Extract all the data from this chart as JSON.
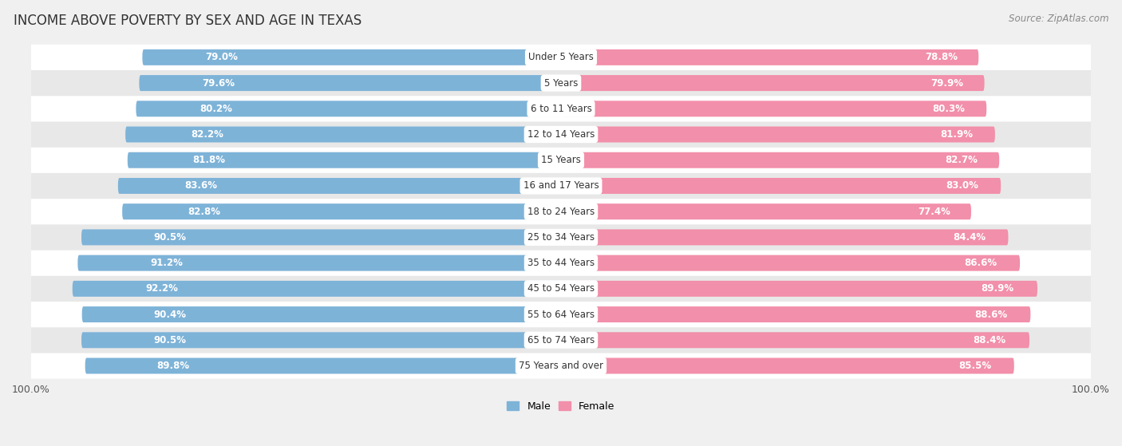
{
  "title": "INCOME ABOVE POVERTY BY SEX AND AGE IN TEXAS",
  "source": "Source: ZipAtlas.com",
  "categories": [
    "Under 5 Years",
    "5 Years",
    "6 to 11 Years",
    "12 to 14 Years",
    "15 Years",
    "16 and 17 Years",
    "18 to 24 Years",
    "25 to 34 Years",
    "35 to 44 Years",
    "45 to 54 Years",
    "55 to 64 Years",
    "65 to 74 Years",
    "75 Years and over"
  ],
  "male_values": [
    79.0,
    79.6,
    80.2,
    82.2,
    81.8,
    83.6,
    82.8,
    90.5,
    91.2,
    92.2,
    90.4,
    90.5,
    89.8
  ],
  "female_values": [
    78.8,
    79.9,
    80.3,
    81.9,
    82.7,
    83.0,
    77.4,
    84.4,
    86.6,
    89.9,
    88.6,
    88.4,
    85.5
  ],
  "male_color": "#7eb3d8",
  "female_color": "#f28faa",
  "male_label": "Male",
  "female_label": "Female",
  "bar_height": 0.62,
  "background_color": "#f0f0f0",
  "row_colors": [
    "#ffffff",
    "#e8e8e8"
  ],
  "title_fontsize": 12,
  "label_fontsize": 8.5,
  "value_fontsize": 8.5,
  "tick_fontsize": 9,
  "source_fontsize": 8.5
}
